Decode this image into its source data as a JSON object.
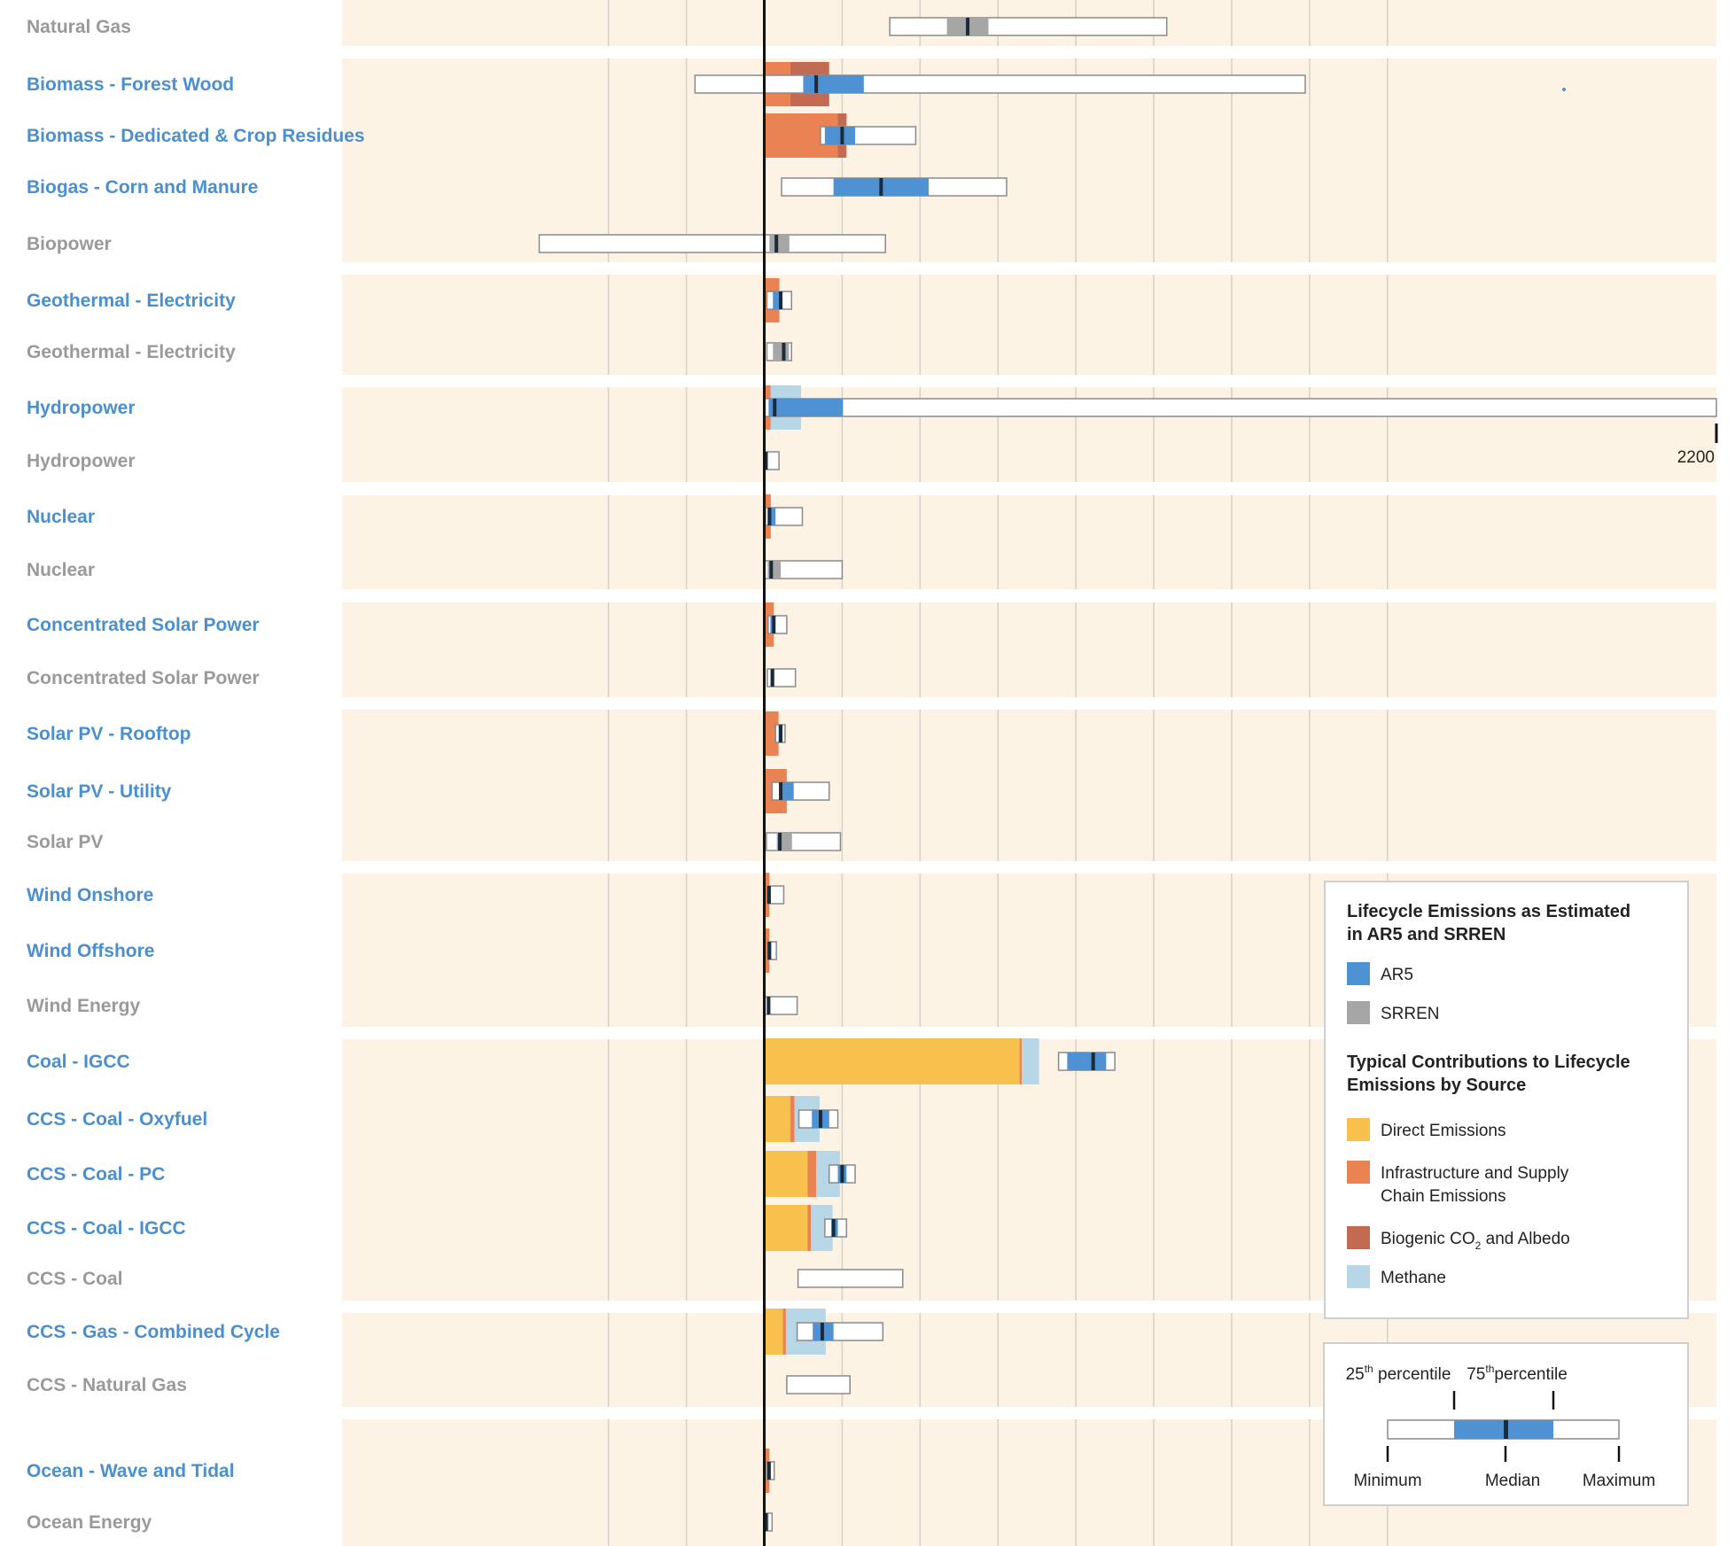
{
  "chart_data": {
    "type": "box-and-stacked-bar",
    "xlim": [
      -500,
      2200
    ],
    "colors": {
      "ar5": "#4f92d3",
      "srren": "#a6a6a6",
      "direct": "#f8c04c",
      "infra": "#e98354",
      "biogenic": "#c36a52",
      "methane": "#b8d7e6",
      "panel": "#fdf3e4"
    },
    "groups": [
      {
        "rows": [
          {
            "label": "Natural Gas",
            "source": "SRREN",
            "box": [
              290,
              422,
              518,
              470,
              930
            ],
            "contrib": []
          }
        ]
      },
      {
        "rows": [
          {
            "label": "Biomass - Forest Wood",
            "source": "AR5",
            "box": [
              -160,
              90,
              230,
              120,
              1250
            ],
            "contrib": [
              {
                "type": "infra",
                "value": 60
              },
              {
                "type": "biogenic",
                "value": 90
              }
            ]
          },
          {
            "label": "Biomass - Dedicated & Crop Residues",
            "source": "AR5",
            "box": [
              130,
              140,
              210,
              180,
              350
            ],
            "contrib": [
              {
                "type": "infra",
                "value": 170
              },
              {
                "type": "biogenic",
                "value": 20
              }
            ]
          },
          {
            "label": "Biogas - Corn and Manure",
            "source": "AR5",
            "box": [
              40,
              160,
              380,
              270,
              560
            ],
            "contrib": []
          },
          {
            "label": "Biopower",
            "source": "SRREN",
            "box": [
              -520,
              12,
              58,
              28,
              280
            ],
            "contrib": []
          }
        ]
      },
      {
        "rows": [
          {
            "label": "Geothermal - Electricity",
            "source": "AR5",
            "box": [
              6,
              20,
              40,
              38,
              63
            ],
            "contrib": [
              {
                "type": "infra",
                "value": 35
              }
            ]
          },
          {
            "label": "Geothermal - Electricity",
            "source": "SRREN",
            "box": [
              6,
              20,
              57,
              45,
              63
            ],
            "contrib": []
          }
        ]
      },
      {
        "rows": [
          {
            "label": "Hydropower",
            "source": "AR5",
            "box": [
              1,
              10,
              182,
              24,
              2200
            ],
            "contrib": [
              {
                "type": "infra",
                "value": 15
              },
              {
                "type": "methane",
                "value": 70
              }
            ]
          },
          {
            "label": "Hydropower",
            "source": "SRREN",
            "box": [
              0,
              2,
              4,
              4,
              34
            ],
            "contrib": []
          }
        ]
      },
      {
        "rows": [
          {
            "label": "Nuclear",
            "source": "AR5",
            "box": [
              3,
              8,
              26,
              12,
              88
            ],
            "contrib": [
              {
                "type": "infra",
                "value": 15
              }
            ]
          },
          {
            "label": "Nuclear",
            "source": "SRREN",
            "box": [
              0,
              8,
              38,
              16,
              180
            ],
            "contrib": []
          }
        ]
      },
      {
        "rows": [
          {
            "label": "Concentrated Solar Power",
            "source": "AR5",
            "box": [
              9,
              14,
              24,
              22,
              52
            ],
            "contrib": [
              {
                "type": "infra",
                "value": 22
              }
            ]
          },
          {
            "label": "Concentrated Solar Power",
            "source": "SRREN",
            "box": [
              7,
              14,
              22,
              19,
              72
            ],
            "contrib": []
          }
        ]
      },
      {
        "rows": [
          {
            "label": "Solar PV - Rooftop",
            "source": "AR5",
            "box": [
              26,
              33,
              40,
              38,
              48
            ],
            "contrib": [
              {
                "type": "infra",
                "value": 33
              }
            ]
          },
          {
            "label": "Solar PV - Utility",
            "source": "AR5",
            "box": [
              18,
              35,
              68,
              38,
              150
            ],
            "contrib": [
              {
                "type": "infra",
                "value": 52
              }
            ]
          },
          {
            "label": "Solar PV",
            "source": "SRREN",
            "box": [
              5,
              29,
              64,
              36,
              176
            ],
            "contrib": []
          }
        ]
      },
      {
        "rows": [
          {
            "label": "Wind Onshore",
            "source": "AR5",
            "box": [
              7,
              8,
              15,
              11,
              45
            ],
            "contrib": [
              {
                "type": "infra",
                "value": 12
              }
            ]
          },
          {
            "label": "Wind Offshore",
            "source": "AR5",
            "box": [
              8,
              9,
              15,
              12,
              28
            ],
            "contrib": [
              {
                "type": "infra",
                "value": 12
              }
            ]
          },
          {
            "label": "Wind Energy",
            "source": "SRREN",
            "box": [
              2,
              8,
              11,
              10,
              76
            ],
            "contrib": []
          }
        ]
      },
      {
        "rows": [
          {
            "label": "Coal - IGCC",
            "source": "AR5",
            "box": [
              680,
              700,
              790,
              760,
              810
            ],
            "contrib": [
              {
                "type": "direct",
                "value": 590
              },
              {
                "type": "infra",
                "value": 5
              },
              {
                "type": "methane",
                "value": 40
              }
            ]
          },
          {
            "label": "CCS - Coal - Oxyfuel",
            "source": "AR5",
            "box": [
              80,
              110,
              150,
              130,
              170
            ],
            "contrib": [
              {
                "type": "direct",
                "value": 60
              },
              {
                "type": "infra",
                "value": 10
              },
              {
                "type": "methane",
                "value": 58
              }
            ]
          },
          {
            "label": "CCS -  Coal - PC",
            "source": "AR5",
            "box": [
              150,
              170,
              190,
              180,
              210
            ],
            "contrib": [
              {
                "type": "direct",
                "value": 100
              },
              {
                "type": "infra",
                "value": 20
              },
              {
                "type": "methane",
                "value": 55
              }
            ]
          },
          {
            "label": "CCS - Coal - IGCC",
            "source": "AR5",
            "box": [
              140,
              155,
              170,
              160,
              190
            ],
            "contrib": [
              {
                "type": "direct",
                "value": 100
              },
              {
                "type": "infra",
                "value": 8
              },
              {
                "type": "methane",
                "value": 50
              }
            ]
          },
          {
            "label": "CCS - Coal",
            "source": "SRREN",
            "box": [
              78,
              78,
              78,
              78,
              320
            ],
            "contrib": []
          }
        ]
      },
      {
        "rows": [
          {
            "label": "CCS - Gas - Combined Cycle",
            "source": "AR5",
            "box": [
              76,
              112,
              160,
              134,
              274
            ],
            "contrib": [
              {
                "type": "direct",
                "value": 43
              },
              {
                "type": "infra",
                "value": 7
              },
              {
                "type": "methane",
                "value": 92
              }
            ]
          },
          {
            "label": "CCS - Natural Gas",
            "source": "SRREN",
            "box": [
              52,
              52,
              52,
              52,
              198
            ],
            "contrib": []
          }
        ]
      },
      {
        "rows": [
          {
            "label": "Ocean - Wave and Tidal",
            "source": "AR5",
            "box": [
              5,
              8,
              13,
              11,
              23
            ],
            "contrib": [
              {
                "type": "infra",
                "value": 12
              }
            ]
          },
          {
            "label": "Ocean Energy",
            "source": "SRREN",
            "box": [
              2,
              3,
              10,
              4,
              18
            ],
            "contrib": []
          }
        ]
      }
    ],
    "annotation": "2200"
  },
  "legend": {
    "title1": "Lifecycle Emissions as Estimated",
    "title1b": "in AR5 and SRREN",
    "ar5": "AR5",
    "srren": "SRREN",
    "title2": "Typical Contributions to Lifecycle",
    "title2b": "Emissions by Source",
    "direct": "Direct Emissions",
    "infra1": "Infrastructure and Supply",
    "infra2": "Chain Emissions",
    "biogenic_a": "Biogenic CO",
    "biogenic_sub": "2",
    "biogenic_b": " and Albedo",
    "methane": "Methane"
  },
  "key": {
    "p25": "25",
    "p25_sup": "th",
    "p25_text": " percentile",
    "p75": "75",
    "p75_sup": "th",
    "p75_text": "percentile",
    "minimum": "Minimum",
    "median": "Median",
    "maximum": "Maximum"
  }
}
